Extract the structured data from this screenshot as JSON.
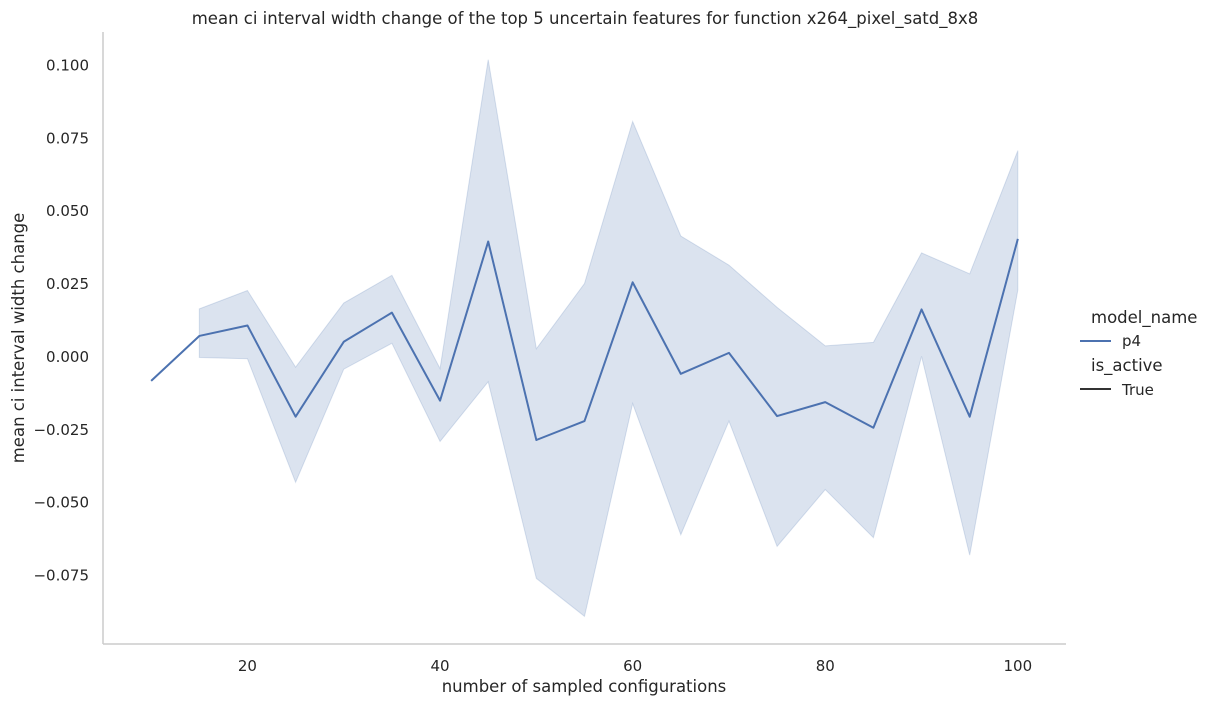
{
  "chart_data": {
    "type": "line",
    "title": "mean ci interval width change of the top 5 uncertain features for function x264_pixel_satd_8x8",
    "xlabel": "number of sampled configurations",
    "ylabel": "mean ci interval width change",
    "xlim": [
      5,
      105
    ],
    "ylim": [
      -0.0985,
      0.1115
    ],
    "x_ticks": [
      20,
      40,
      60,
      80,
      100
    ],
    "y_ticks": [
      -0.075,
      -0.05,
      -0.025,
      0.0,
      0.025,
      0.05,
      0.075,
      0.1
    ],
    "y_tick_labels": [
      "−0.075",
      "−0.050",
      "−0.025",
      "0.000",
      "0.025",
      "0.050",
      "0.075",
      "0.100"
    ],
    "grid": false,
    "legend_position": "right",
    "legend": {
      "hue_title": "model_name",
      "hue_entries": [
        {
          "label": "p4",
          "color": "#4c72b0"
        }
      ],
      "style_title": "is_active",
      "style_entries": [
        {
          "label": "True",
          "color": "#333333"
        }
      ]
    },
    "series": [
      {
        "name": "p4",
        "color": "#4c72b0",
        "x": [
          10,
          15,
          20,
          25,
          30,
          35,
          40,
          45,
          50,
          55,
          60,
          65,
          70,
          75,
          80,
          85,
          90,
          95,
          100
        ],
        "y": [
          -0.0082,
          0.0072,
          0.0108,
          -0.0205,
          0.0052,
          0.0152,
          -0.015,
          0.0396,
          -0.0285,
          -0.022,
          0.0256,
          -0.0058,
          0.0014,
          -0.0203,
          -0.0155,
          -0.0243,
          0.0163,
          -0.0205,
          0.0405
        ],
        "ci": {
          "x": [
            15,
            20,
            25,
            30,
            35,
            40,
            45,
            50,
            55,
            60,
            65,
            70,
            75,
            80,
            85,
            90,
            95,
            100
          ],
          "lower": [
            -0.0002,
            -0.0006,
            -0.043,
            -0.0042,
            0.0047,
            -0.029,
            -0.0085,
            -0.076,
            -0.089,
            -0.016,
            -0.061,
            -0.022,
            -0.065,
            -0.0455,
            -0.062,
            0.0002,
            -0.068,
            0.023
          ],
          "upper": [
            0.0165,
            0.0228,
            -0.0035,
            0.0185,
            0.028,
            -0.004,
            0.102,
            0.0028,
            0.0252,
            0.0808,
            0.0415,
            0.0315,
            0.017,
            0.0038,
            0.005,
            0.0357,
            0.0285,
            0.0708
          ]
        }
      }
    ]
  }
}
